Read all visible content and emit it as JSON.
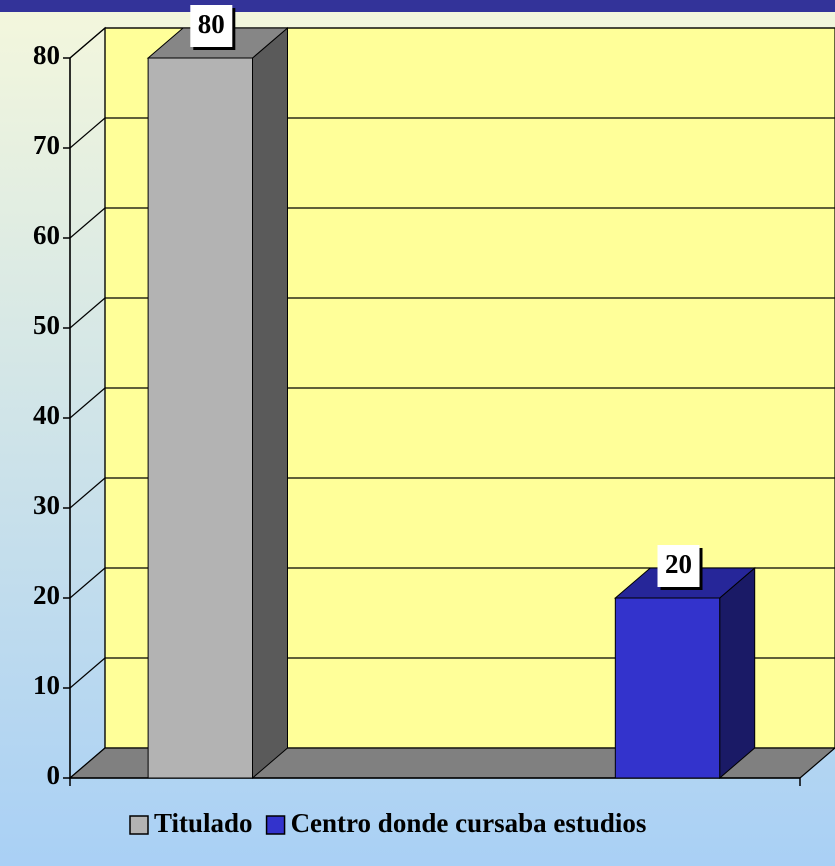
{
  "chart_data": {
    "type": "bar3d",
    "categories": [
      null
    ],
    "series": [
      {
        "name": "Titulado",
        "color": "#b3b3b3",
        "values": [
          80
        ]
      },
      {
        "name": "Centro donde cursaba estudios",
        "color": "#3333cc",
        "values": [
          20
        ]
      }
    ],
    "ylim": [
      0,
      80
    ],
    "yticks": [
      0,
      10,
      20,
      30,
      40,
      50,
      60,
      70,
      80
    ],
    "grid": true,
    "legend": "bottom"
  }
}
